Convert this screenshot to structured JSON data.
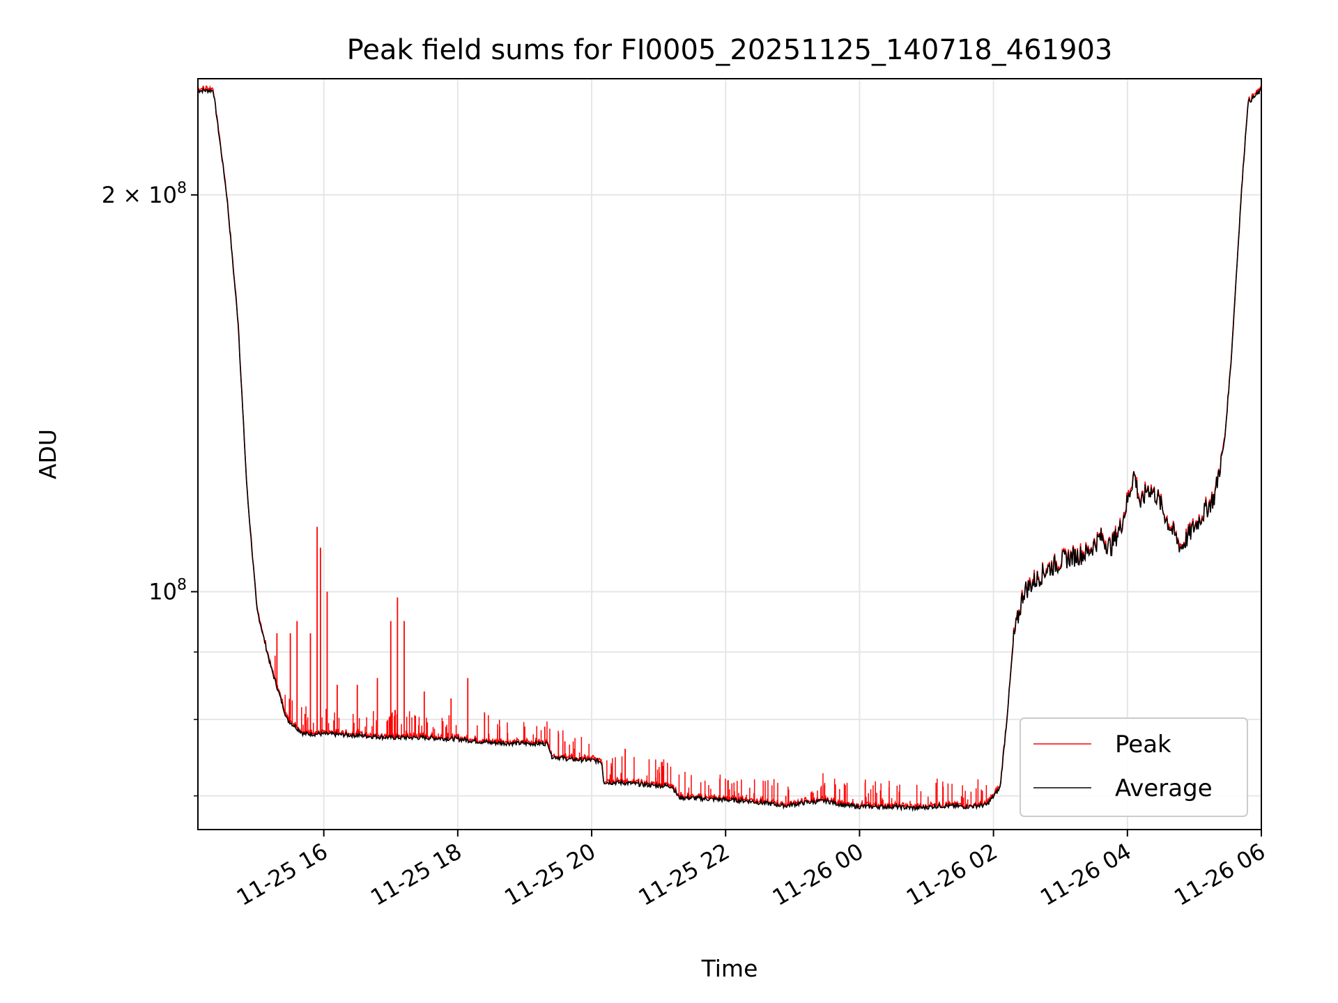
{
  "chart_data": {
    "type": "line",
    "title": "Peak field sums for FI0005_20251125_140718_461903",
    "xlabel": "Time",
    "ylabel": "ADU",
    "yscale": "log",
    "ylim": [
      66000000,
      245000000
    ],
    "xlim_hours": [
      14.12,
      30.0
    ],
    "grid": true,
    "legend_position": "lower-right",
    "x_ticks": [
      {
        "hour": 16,
        "label": "11-25 16"
      },
      {
        "hour": 18,
        "label": "11-25 18"
      },
      {
        "hour": 20,
        "label": "11-25 20"
      },
      {
        "hour": 22,
        "label": "11-25 22"
      },
      {
        "hour": 24,
        "label": "11-26 00"
      },
      {
        "hour": 26,
        "label": "11-26 02"
      },
      {
        "hour": 28,
        "label": "11-26 04"
      },
      {
        "hour": 30,
        "label": "11-26 06"
      }
    ],
    "y_major_ticks": [
      {
        "value": 100000000,
        "base": "10",
        "exp": "8",
        "coef": ""
      },
      {
        "value": 200000000,
        "base": "10",
        "exp": "8",
        "coef": "2 × "
      }
    ],
    "y_minor_ticks": [
      70000000,
      80000000,
      90000000
    ],
    "series": [
      {
        "name": "Peak",
        "color": "#ff0000",
        "spikes": [
          {
            "hour": 15.3,
            "value": 93000000
          },
          {
            "hour": 15.5,
            "value": 93000000
          },
          {
            "hour": 15.6,
            "value": 95000000
          },
          {
            "hour": 15.8,
            "value": 93000000
          },
          {
            "hour": 15.9,
            "value": 112000000
          },
          {
            "hour": 15.95,
            "value": 108000000
          },
          {
            "hour": 16.05,
            "value": 100000000
          },
          {
            "hour": 16.2,
            "value": 85000000
          },
          {
            "hour": 16.5,
            "value": 85000000
          },
          {
            "hour": 16.8,
            "value": 86000000
          },
          {
            "hour": 17.0,
            "value": 95000000
          },
          {
            "hour": 17.1,
            "value": 99000000
          },
          {
            "hour": 17.2,
            "value": 95000000
          },
          {
            "hour": 17.5,
            "value": 84000000
          },
          {
            "hour": 17.9,
            "value": 83000000
          },
          {
            "hour": 18.15,
            "value": 86000000
          },
          {
            "hour": 18.4,
            "value": 81000000
          },
          {
            "hour": 19.0,
            "value": 79000000
          },
          {
            "hour": 19.3,
            "value": 79000000
          },
          {
            "hour": 19.6,
            "value": 77000000
          },
          {
            "hour": 20.5,
            "value": 76000000
          },
          {
            "hour": 22.9,
            "value": 70000000
          },
          {
            "hour": 24.35,
            "value": 69500000
          },
          {
            "hour": 25.7,
            "value": 68500000
          }
        ]
      },
      {
        "name": "Average",
        "color": "#000000",
        "points": [
          [
            14.12,
            240000000
          ],
          [
            14.35,
            240000000
          ],
          [
            14.55,
            200000000
          ],
          [
            14.72,
            160000000
          ],
          [
            14.85,
            120000000
          ],
          [
            15.0,
            97000000
          ],
          [
            15.2,
            88000000
          ],
          [
            15.45,
            80000000
          ],
          [
            15.7,
            78000000
          ],
          [
            16.0,
            78000000
          ],
          [
            16.5,
            77800000
          ],
          [
            17.0,
            77500000
          ],
          [
            17.5,
            77500000
          ],
          [
            18.0,
            77300000
          ],
          [
            18.5,
            76800000
          ],
          [
            19.0,
            76700000
          ],
          [
            19.35,
            76700000
          ],
          [
            19.4,
            75000000
          ],
          [
            19.7,
            74600000
          ],
          [
            20.0,
            74500000
          ],
          [
            20.15,
            74300000
          ],
          [
            20.18,
            71700000
          ],
          [
            20.5,
            71600000
          ],
          [
            20.9,
            71300000
          ],
          [
            21.2,
            71200000
          ],
          [
            21.3,
            69800000
          ],
          [
            21.8,
            69600000
          ],
          [
            22.3,
            69400000
          ],
          [
            22.7,
            69000000
          ],
          [
            22.9,
            68800000
          ],
          [
            23.2,
            69200000
          ],
          [
            23.5,
            69400000
          ],
          [
            23.8,
            68800000
          ],
          [
            24.0,
            68700000
          ],
          [
            24.5,
            68700000
          ],
          [
            24.85,
            68500000
          ],
          [
            25.2,
            68800000
          ],
          [
            25.6,
            68700000
          ],
          [
            25.9,
            68900000
          ],
          [
            26.1,
            71000000
          ],
          [
            26.2,
            80000000
          ],
          [
            26.3,
            92000000
          ],
          [
            26.45,
            100000000
          ],
          [
            26.8,
            104000000
          ],
          [
            27.1,
            106000000
          ],
          [
            27.4,
            107000000
          ],
          [
            27.6,
            110000000
          ],
          [
            27.75,
            108000000
          ],
          [
            27.9,
            112000000
          ],
          [
            28.0,
            117000000
          ],
          [
            28.1,
            123000000
          ],
          [
            28.2,
            116000000
          ],
          [
            28.3,
            120000000
          ],
          [
            28.45,
            118000000
          ],
          [
            28.6,
            113000000
          ],
          [
            28.8,
            108000000
          ],
          [
            28.95,
            111000000
          ],
          [
            29.1,
            114000000
          ],
          [
            29.3,
            118000000
          ],
          [
            29.45,
            130000000
          ],
          [
            29.55,
            150000000
          ],
          [
            29.7,
            200000000
          ],
          [
            29.8,
            235000000
          ],
          [
            30.0,
            240000000
          ]
        ]
      }
    ]
  }
}
